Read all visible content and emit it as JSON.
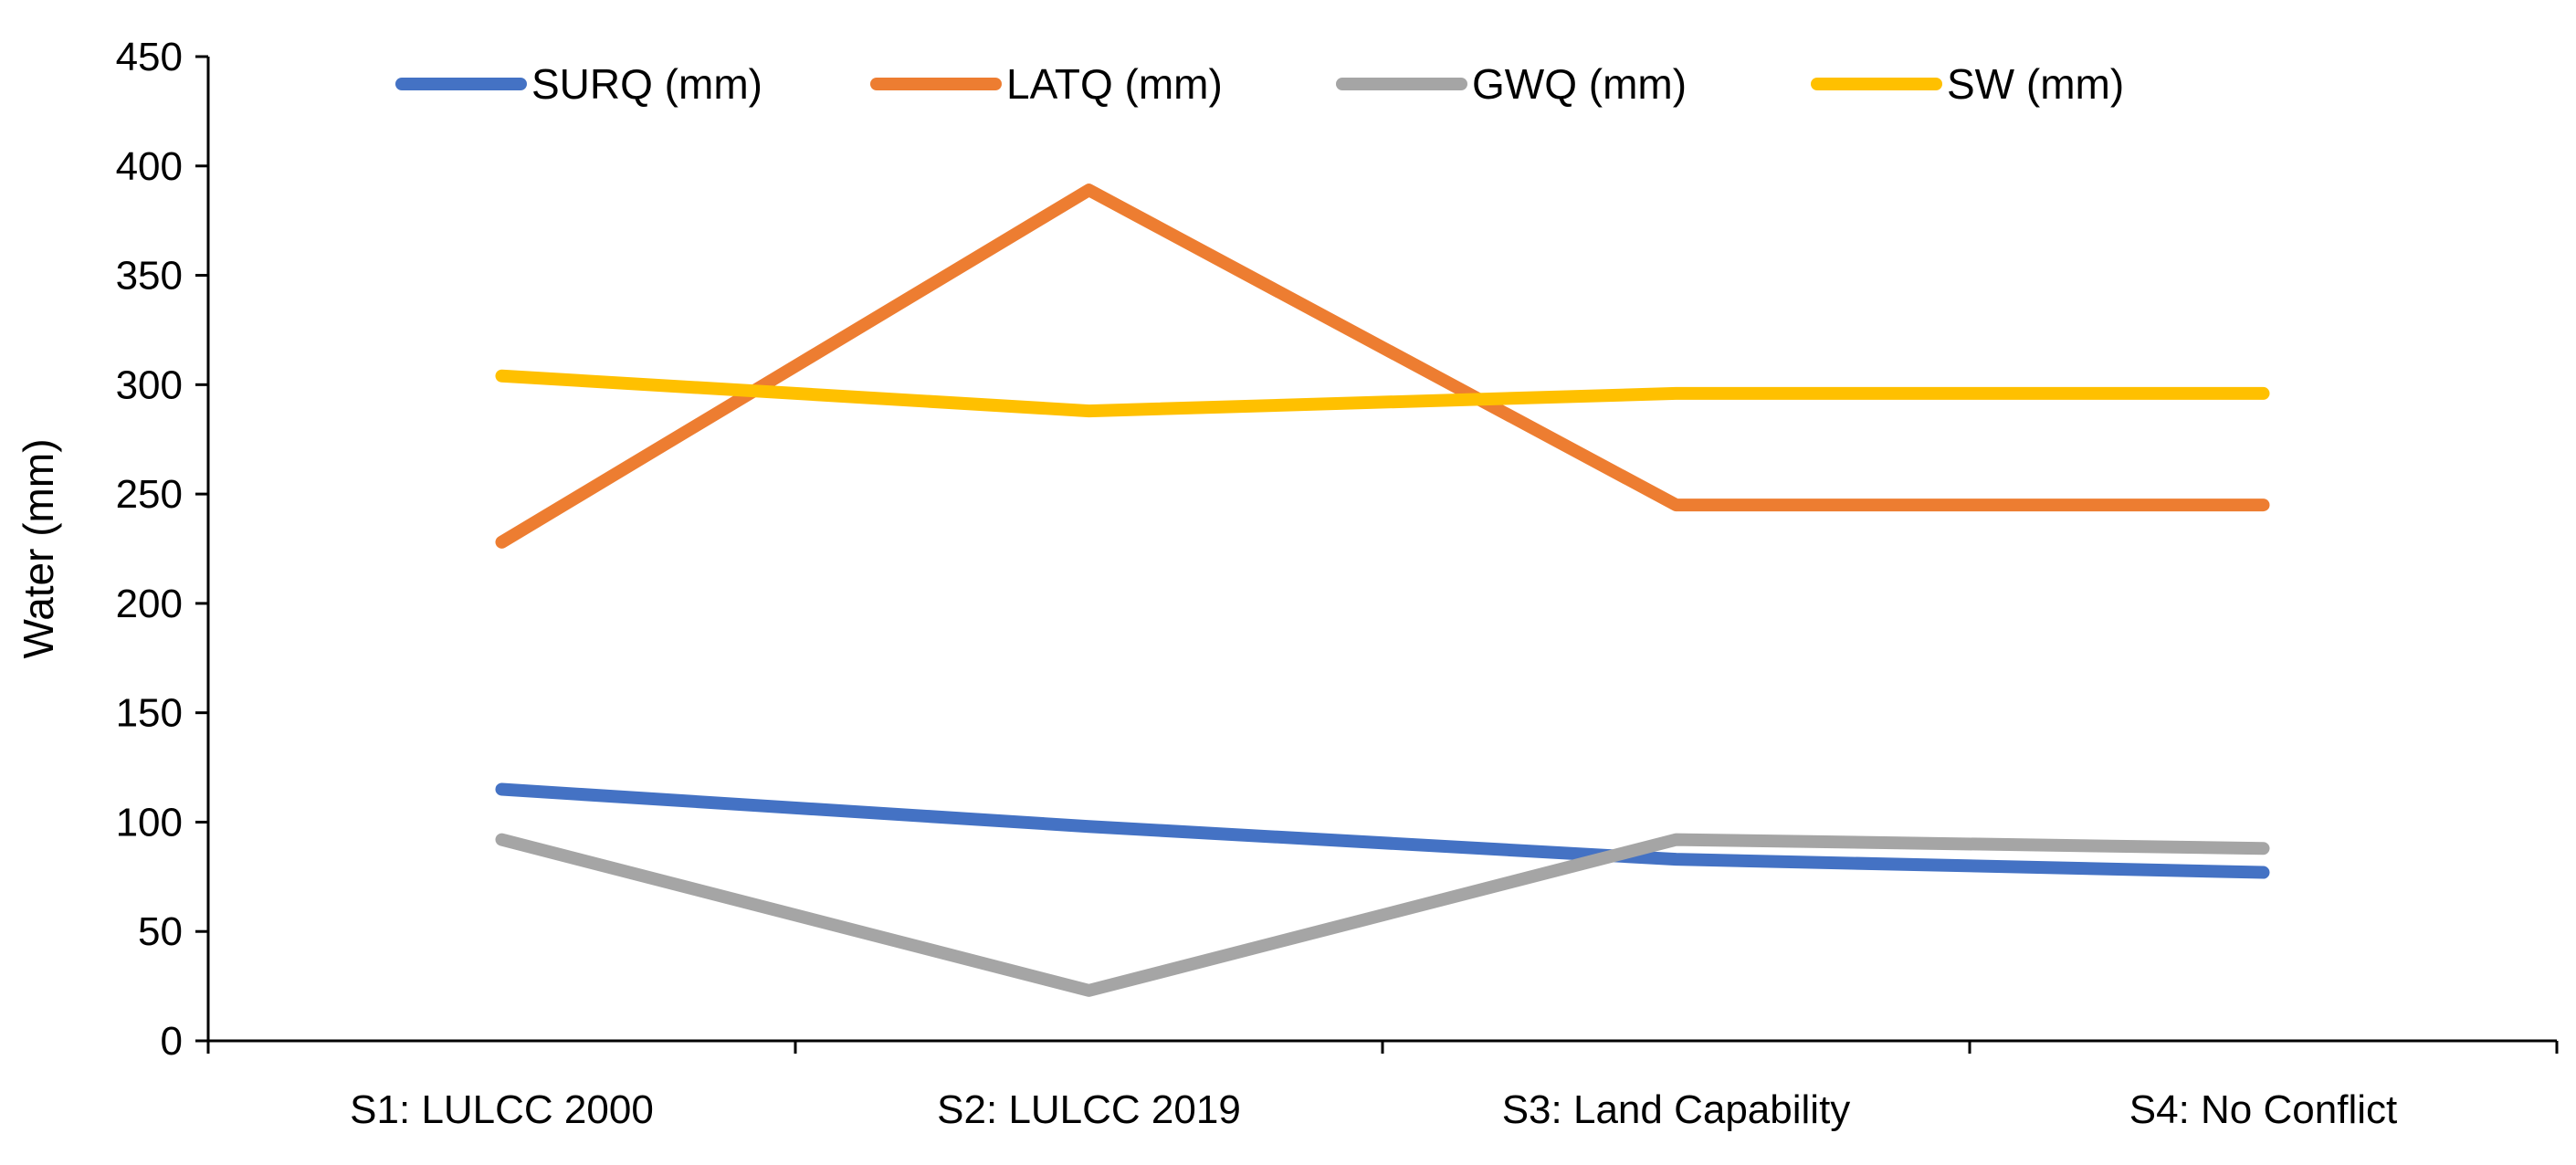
{
  "chart_data": {
    "type": "line",
    "title": "",
    "xlabel": "",
    "ylabel": "Water (mm)",
    "ylim": [
      0,
      450
    ],
    "yticks": [
      0,
      50,
      100,
      150,
      200,
      250,
      300,
      350,
      400,
      450
    ],
    "grid": false,
    "legend_position": "top",
    "categories": [
      "S1: LULCC 2000",
      "S2: LULCC 2019",
      "S3: Land Capability",
      "S4: No Conflict"
    ],
    "series": [
      {
        "name": "SURQ (mm)",
        "color": "#4472C4",
        "values": [
          115,
          98,
          83,
          77
        ]
      },
      {
        "name": "LATQ (mm)",
        "color": "#ED7D31",
        "values": [
          228,
          389,
          245,
          245
        ]
      },
      {
        "name": "GWQ (mm)",
        "color": "#A5A5A5",
        "values": [
          92,
          23,
          92,
          88
        ]
      },
      {
        "name": "SW (mm)",
        "color": "#FFC000",
        "values": [
          304,
          288,
          296,
          296
        ]
      }
    ]
  }
}
